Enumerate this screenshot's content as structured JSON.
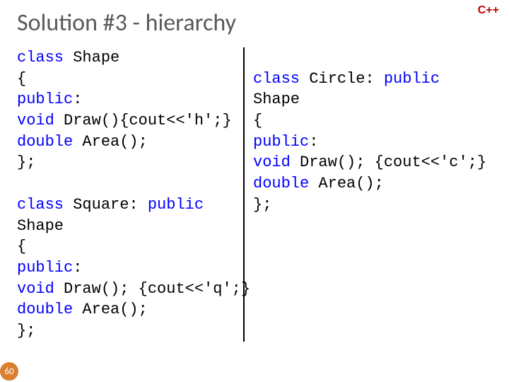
{
  "slide": {
    "title": "Solution #3 - hierarchy",
    "badge": "C++",
    "number": "60",
    "colors": {
      "title": "#595959",
      "badge": "#c00000",
      "keyword": "#0000ff",
      "text": "#000000",
      "slide_num_bg": "#d97f2d",
      "slide_num_fg": "#ffffff",
      "divider": "#000000",
      "background": "#ffffff"
    },
    "typography": {
      "title_fontsize": 34,
      "code_fontsize": 22,
      "badge_fontsize": 16,
      "code_font": "Consolas",
      "title_font": "Calibri"
    },
    "layout": {
      "left_col_width": 322,
      "divider_width": 2
    },
    "left_code": [
      [
        {
          "kw": true,
          "t": "class"
        },
        {
          "kw": false,
          "t": " Shape"
        }
      ],
      [
        {
          "kw": false,
          "t": "{"
        }
      ],
      [
        {
          "kw": true,
          "t": "public"
        },
        {
          "kw": false,
          "t": ":"
        }
      ],
      [
        {
          "kw": true,
          "t": "void"
        },
        {
          "kw": false,
          "t": " Draw(){cout<<'h';}"
        }
      ],
      [
        {
          "kw": true,
          "t": "double"
        },
        {
          "kw": false,
          "t": " Area();"
        }
      ],
      [
        {
          "kw": false,
          "t": "};"
        }
      ],
      [
        {
          "kw": false,
          "t": ""
        }
      ],
      [
        {
          "kw": true,
          "t": "class"
        },
        {
          "kw": false,
          "t": " Square: "
        },
        {
          "kw": true,
          "t": "public"
        }
      ],
      [
        {
          "kw": false,
          "t": "Shape"
        }
      ],
      [
        {
          "kw": false,
          "t": "{"
        }
      ],
      [
        {
          "kw": true,
          "t": "public"
        },
        {
          "kw": false,
          "t": ":"
        }
      ],
      [
        {
          "kw": true,
          "t": "void"
        },
        {
          "kw": false,
          "t": " Draw(); {cout<<'q';}"
        }
      ],
      [
        {
          "kw": true,
          "t": "double"
        },
        {
          "kw": false,
          "t": " Area();"
        }
      ],
      [
        {
          "kw": false,
          "t": "};"
        }
      ]
    ],
    "right_code": [
      [
        {
          "kw": false,
          "t": ""
        }
      ],
      [
        {
          "kw": true,
          "t": "class"
        },
        {
          "kw": false,
          "t": " Circle: "
        },
        {
          "kw": true,
          "t": "public"
        }
      ],
      [
        {
          "kw": false,
          "t": "Shape"
        }
      ],
      [
        {
          "kw": false,
          "t": "{"
        }
      ],
      [
        {
          "kw": true,
          "t": "public"
        },
        {
          "kw": false,
          "t": ":"
        }
      ],
      [
        {
          "kw": true,
          "t": "void"
        },
        {
          "kw": false,
          "t": " Draw(); {cout<<'c';}"
        }
      ],
      [
        {
          "kw": true,
          "t": "double"
        },
        {
          "kw": false,
          "t": " Area();"
        }
      ],
      [
        {
          "kw": false,
          "t": "};"
        }
      ]
    ]
  }
}
